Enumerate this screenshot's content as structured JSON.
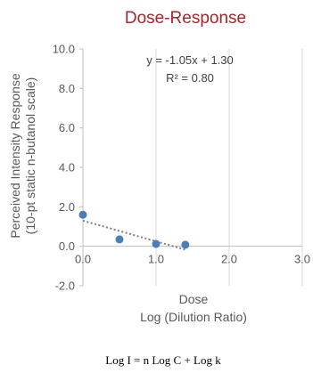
{
  "chart_data": {
    "type": "scatter",
    "title": "Dose-Response",
    "xlabel_line1": "Dose",
    "xlabel_line2": "Log (Dilution Ratio)",
    "ylabel_line1": "Perceived Intensity Response",
    "ylabel_line2": "(10-pt static n-butanol scale)",
    "xlim": [
      0,
      3
    ],
    "ylim": [
      -2,
      10
    ],
    "x_ticks": [
      "0.0",
      "1.0",
      "2.0",
      "3.0"
    ],
    "y_ticks": [
      "-2.0",
      "0.0",
      "2.0",
      "4.0",
      "6.0",
      "8.0",
      "10.0"
    ],
    "grid": "vertical",
    "series": [
      {
        "x": [
          0.0,
          0.5,
          1.0,
          1.4
        ],
        "y": [
          1.6,
          0.35,
          0.12,
          0.08
        ],
        "color": "#4a7ebb"
      }
    ],
    "trendline": {
      "slope": -1.05,
      "intercept": 1.3,
      "x_range": [
        0.0,
        1.4
      ],
      "style": "dotted",
      "color": "#7f7f7f"
    },
    "equation_label": "y = -1.05x + 1.30",
    "r2_label": "R² = 0.80"
  },
  "footer": {
    "formula": "Log I = n Log C + Log k"
  }
}
